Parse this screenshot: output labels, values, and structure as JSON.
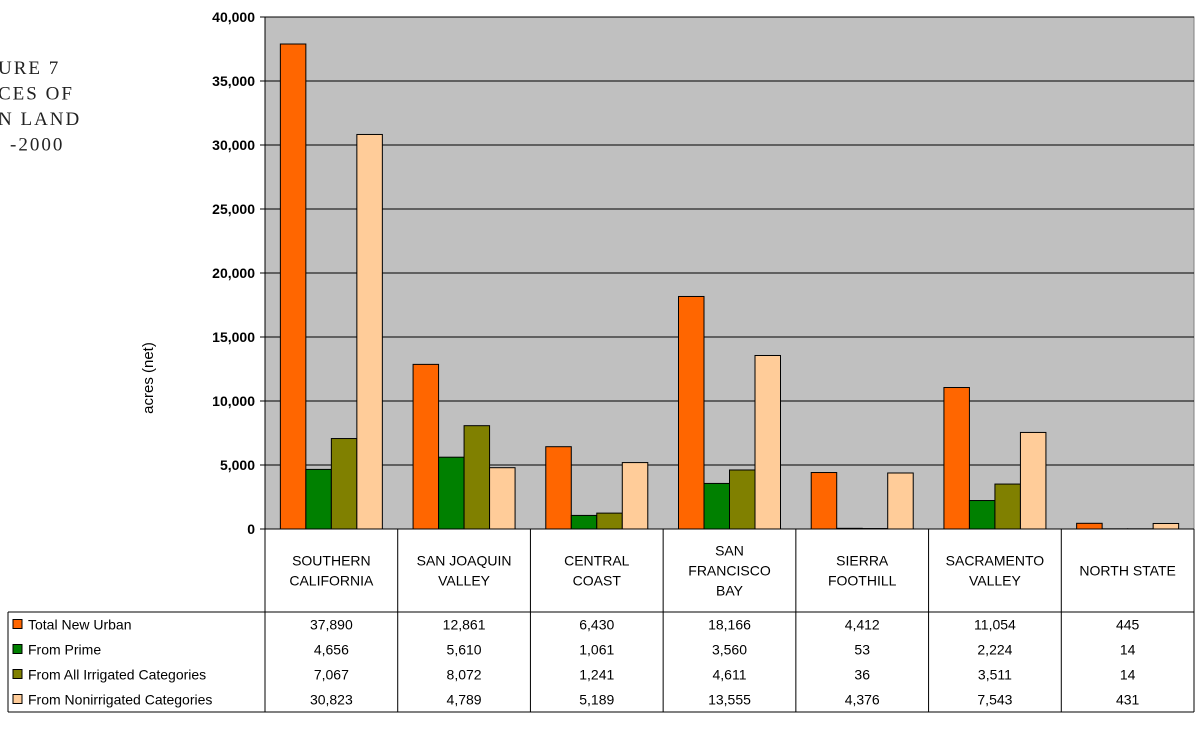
{
  "figure_title": [
    "URE 7",
    "CES OF",
    "N LAND",
    "-2000"
  ],
  "chart_data": {
    "type": "bar",
    "ylabel": "acres (net)",
    "ylim": [
      0,
      40000
    ],
    "yticks": [
      0,
      5000,
      10000,
      15000,
      20000,
      25000,
      30000,
      35000,
      40000
    ],
    "ytick_labels": [
      "0",
      "5,000",
      "10,000",
      "15,000",
      "20,000",
      "25,000",
      "30,000",
      "35,000",
      "40,000"
    ],
    "grid": true,
    "categories": [
      [
        "SOUTHERN",
        "CALIFORNIA"
      ],
      [
        "SAN JOAQUIN",
        "VALLEY"
      ],
      [
        "CENTRAL",
        "COAST"
      ],
      [
        "SAN",
        "FRANCISCO",
        "BAY"
      ],
      [
        "SIERRA",
        "FOOTHILL"
      ],
      [
        "SACRAMENTO",
        "VALLEY"
      ],
      [
        "NORTH STATE"
      ]
    ],
    "series": [
      {
        "name": "Total New  Urban",
        "color": "#ff6600",
        "values": [
          37890,
          12861,
          6430,
          18166,
          4412,
          11054,
          445
        ],
        "labels": [
          "37,890",
          "12,861",
          "6,430",
          "18,166",
          "4,412",
          "11,054",
          "445"
        ]
      },
      {
        "name": "From Prime",
        "color": "#008000",
        "values": [
          4656,
          5610,
          1061,
          3560,
          53,
          2224,
          14
        ],
        "labels": [
          "4,656",
          "5,610",
          "1,061",
          "3,560",
          "53",
          "2,224",
          "14"
        ]
      },
      {
        "name": "From All Irrigated Categories",
        "color": "#808000",
        "values": [
          7067,
          8072,
          1241,
          4611,
          36,
          3511,
          14
        ],
        "labels": [
          "7,067",
          "8,072",
          "1,241",
          "4,611",
          "36",
          "3,511",
          "14"
        ]
      },
      {
        "name": "From Nonirrigated Categories",
        "color": "#ffcc99",
        "values": [
          30823,
          4789,
          5189,
          13555,
          4376,
          7543,
          431
        ],
        "labels": [
          "30,823",
          "4,789",
          "5,189",
          "13,555",
          "4,376",
          "7,543",
          "431"
        ]
      }
    ],
    "plot_background": "#c0c0c0",
    "legend": "data-table-left"
  }
}
